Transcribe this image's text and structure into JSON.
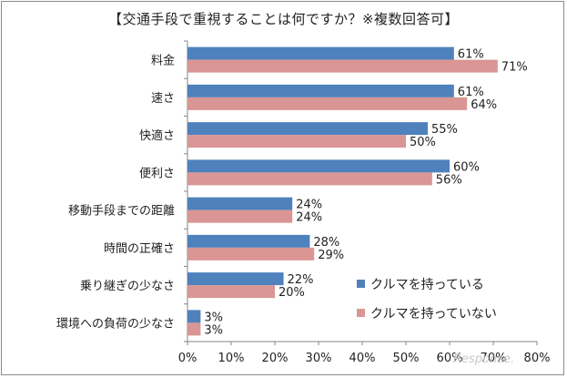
{
  "chart_data": {
    "type": "bar",
    "orientation": "horizontal",
    "title": "【交通手段で重視することは何ですか？※複数回答可】",
    "categories": [
      "料金",
      "速さ",
      "快適さ",
      "便利さ",
      "移動手段までの距離",
      "時間の正確さ",
      "乗り継ぎの少なさ",
      "環境への負荷の少なさ"
    ],
    "series": [
      {
        "name": "クルマを持っている",
        "color": "#4f81bd",
        "values": [
          61,
          61,
          55,
          60,
          24,
          28,
          22,
          3
        ]
      },
      {
        "name": "クルマを持っていない",
        "color": "#d99694",
        "values": [
          71,
          64,
          50,
          56,
          24,
          29,
          20,
          3
        ]
      }
    ],
    "xlim": [
      0,
      80
    ],
    "xticks": [
      "0%",
      "10%",
      "20%",
      "30%",
      "40%",
      "50%",
      "60%",
      "70%",
      "80%"
    ],
    "value_suffix": "%",
    "legend_position": "bottom-right",
    "grid": false
  },
  "watermark": "Response."
}
